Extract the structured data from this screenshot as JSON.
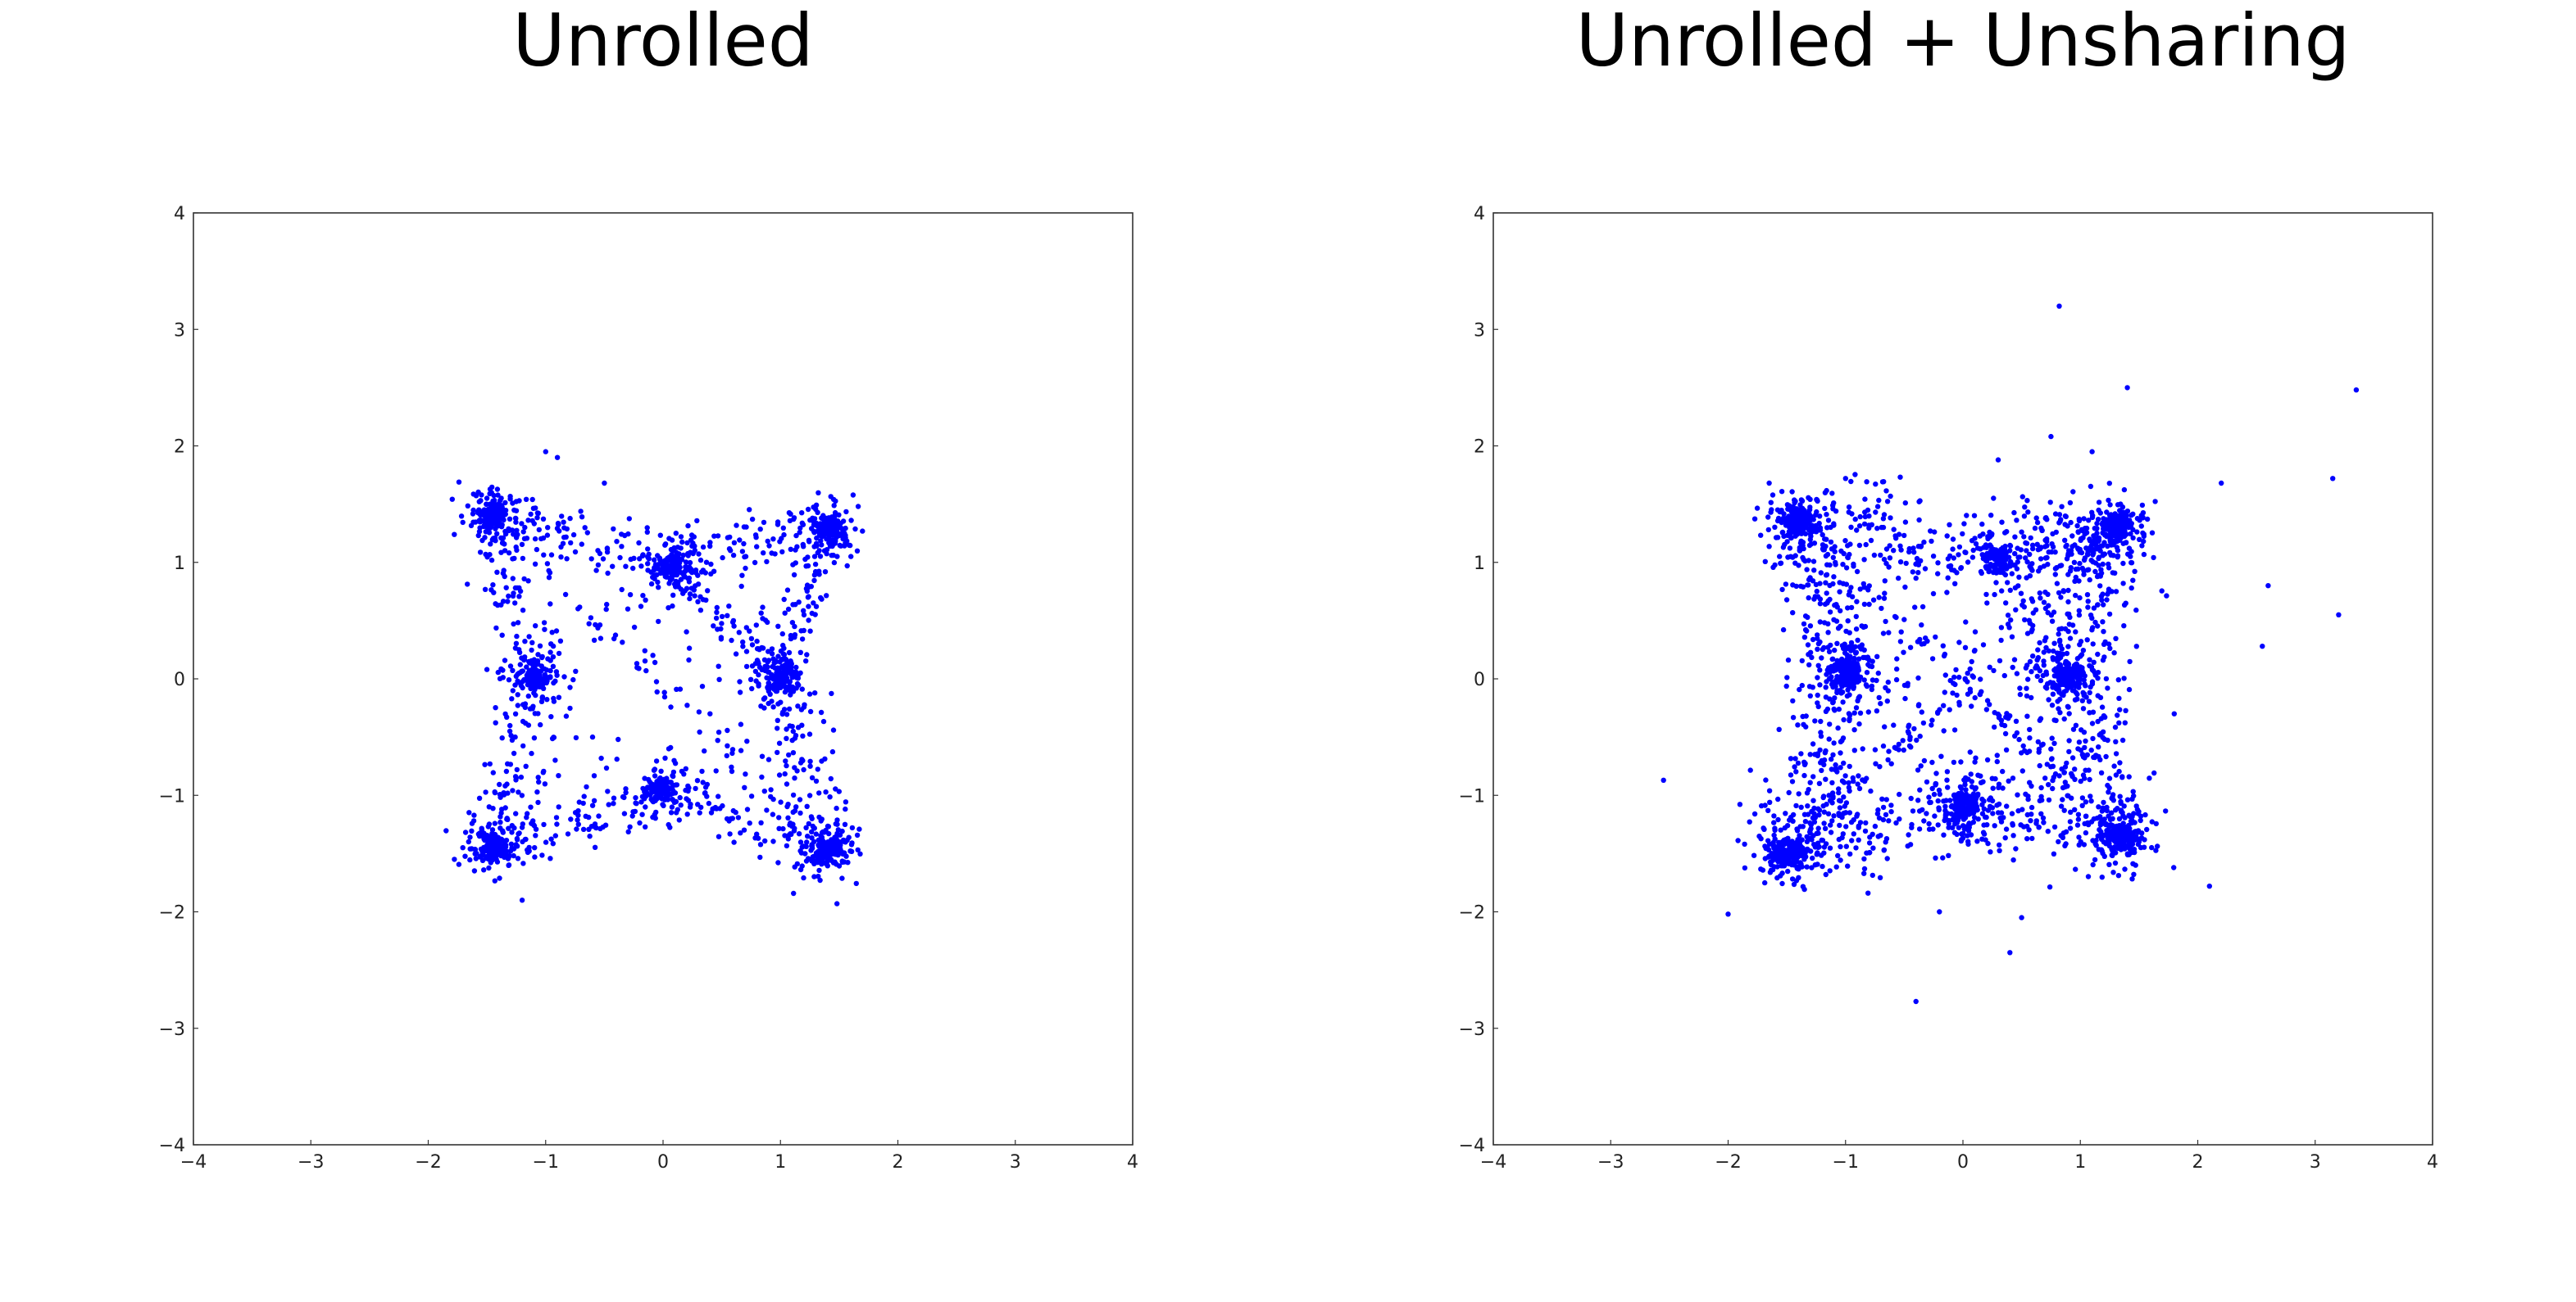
{
  "panels": [
    {
      "title": "Unrolled"
    },
    {
      "title": "Unrolled + Unsharing"
    }
  ],
  "chart_data": [
    {
      "type": "scatter",
      "title": "Unrolled",
      "xlabel": "",
      "ylabel": "",
      "xlim": [
        -4,
        4
      ],
      "ylim": [
        -4,
        4
      ],
      "xticks": [
        "−4",
        "−3",
        "−2",
        "−1",
        "0",
        "1",
        "2",
        "3",
        "4"
      ],
      "yticks": [
        "−4",
        "−3",
        "−2",
        "−1",
        "0",
        "1",
        "2",
        "3",
        "4"
      ],
      "grid": false,
      "point_color": "#0000ff",
      "clusters": [
        {
          "x": -1.45,
          "y": 1.4,
          "n": 180
        },
        {
          "x": -1.1,
          "y": 0.02,
          "n": 150
        },
        {
          "x": -1.45,
          "y": -1.45,
          "n": 180
        },
        {
          "x": 0.05,
          "y": 0.97,
          "n": 130
        },
        {
          "x": 1.0,
          "y": 0.02,
          "n": 150
        },
        {
          "x": 1.42,
          "y": 1.3,
          "n": 180
        },
        {
          "x": 1.4,
          "y": -1.48,
          "n": 180
        },
        {
          "x": 0.0,
          "y": -0.95,
          "n": 130
        }
      ],
      "scatter_points": [
        {
          "x": -1.0,
          "y": 1.95
        },
        {
          "x": -0.9,
          "y": 1.9
        },
        {
          "x": -0.5,
          "y": 1.68
        },
        {
          "x": -1.2,
          "y": -1.9
        },
        {
          "x": -1.5,
          "y": 1.55
        },
        {
          "x": 1.6,
          "y": 1.05
        },
        {
          "x": -1.5,
          "y": 0.08
        },
        {
          "x": 1.55,
          "y": -1.25
        },
        {
          "x": -0.3,
          "y": 0.6
        },
        {
          "x": 0.4,
          "y": -0.3
        },
        {
          "x": 0.6,
          "y": 0.5
        },
        {
          "x": -0.6,
          "y": -0.5
        }
      ]
    },
    {
      "type": "scatter",
      "title": "Unrolled + Unsharing",
      "xlabel": "",
      "ylabel": "",
      "xlim": [
        -4,
        4
      ],
      "ylim": [
        -4,
        4
      ],
      "xticks": [
        "−4",
        "−3",
        "−2",
        "−1",
        "0",
        "1",
        "2",
        "3",
        "4"
      ],
      "yticks": [
        "−4",
        "−3",
        "−2",
        "−1",
        "0",
        "1",
        "2",
        "3",
        "4"
      ],
      "grid": false,
      "point_color": "#0000ff",
      "clusters": [
        {
          "x": -1.4,
          "y": 1.35,
          "n": 200
        },
        {
          "x": -1.0,
          "y": 0.05,
          "n": 220
        },
        {
          "x": -1.5,
          "y": -1.5,
          "n": 200
        },
        {
          "x": 0.0,
          "y": -1.1,
          "n": 180
        },
        {
          "x": 0.9,
          "y": 0.02,
          "n": 200
        },
        {
          "x": 1.3,
          "y": 1.3,
          "n": 200
        },
        {
          "x": 1.35,
          "y": -1.35,
          "n": 220
        },
        {
          "x": 0.3,
          "y": 1.05,
          "n": 120
        }
      ],
      "scatter_points": [
        {
          "x": 0.82,
          "y": 3.2
        },
        {
          "x": 1.4,
          "y": 2.5
        },
        {
          "x": 3.35,
          "y": 2.48
        },
        {
          "x": 2.2,
          "y": 1.68
        },
        {
          "x": 3.15,
          "y": 1.72
        },
        {
          "x": 2.6,
          "y": 0.8
        },
        {
          "x": 3.2,
          "y": 0.55
        },
        {
          "x": 2.55,
          "y": 0.28
        },
        {
          "x": 1.8,
          "y": -0.3
        },
        {
          "x": 2.1,
          "y": -1.78
        },
        {
          "x": -2.55,
          "y": -0.87
        },
        {
          "x": -2.0,
          "y": -2.02
        },
        {
          "x": -0.4,
          "y": -2.77
        },
        {
          "x": 0.4,
          "y": -2.35
        },
        {
          "x": 0.75,
          "y": 2.08
        },
        {
          "x": -1.65,
          "y": 1.68
        },
        {
          "x": -1.0,
          "y": 1.72
        },
        {
          "x": 0.3,
          "y": 1.88
        },
        {
          "x": 1.1,
          "y": 1.95
        },
        {
          "x": -0.2,
          "y": -2.0
        },
        {
          "x": 0.5,
          "y": -2.05
        }
      ]
    }
  ]
}
